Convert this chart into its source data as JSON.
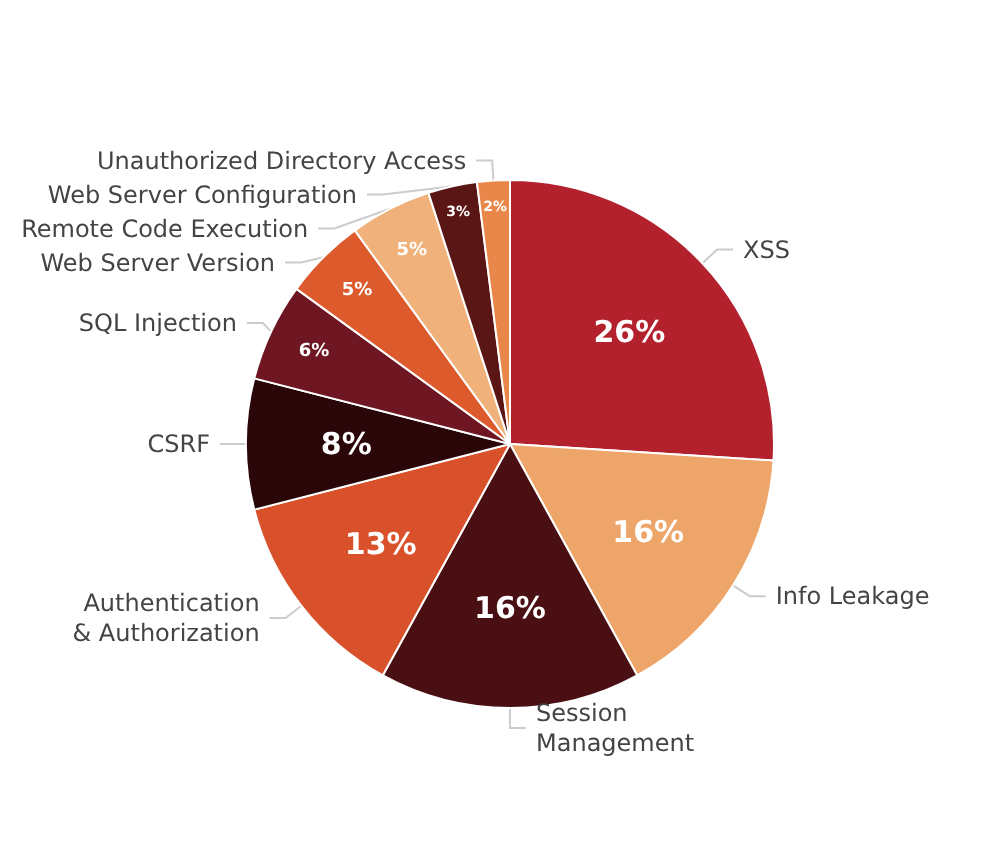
{
  "chart_data": {
    "type": "pie",
    "categories": [
      "XSS",
      "Info Leakage",
      "Session\nManagement",
      "Authentication\n& Authorization",
      "CSRF",
      "SQL Injection",
      "Web Server Version",
      "Remote Code Execution",
      "Web Server Configuration",
      "Unauthorized Directory Access"
    ],
    "values": [
      26,
      16,
      16,
      13,
      8,
      6,
      5,
      5,
      3,
      2
    ],
    "value_labels": [
      "26%",
      "16%",
      "16%",
      "13%",
      "8%",
      "6%",
      "5%",
      "5%",
      "3%",
      "2%"
    ],
    "colors": [
      "#b3212c",
      "#eea56a",
      "#4a0f12",
      "#d9512b",
      "#2a0608",
      "#6e1622",
      "#dd5a2c",
      "#f0b27a",
      "#5a1515",
      "#e9874a"
    ]
  }
}
